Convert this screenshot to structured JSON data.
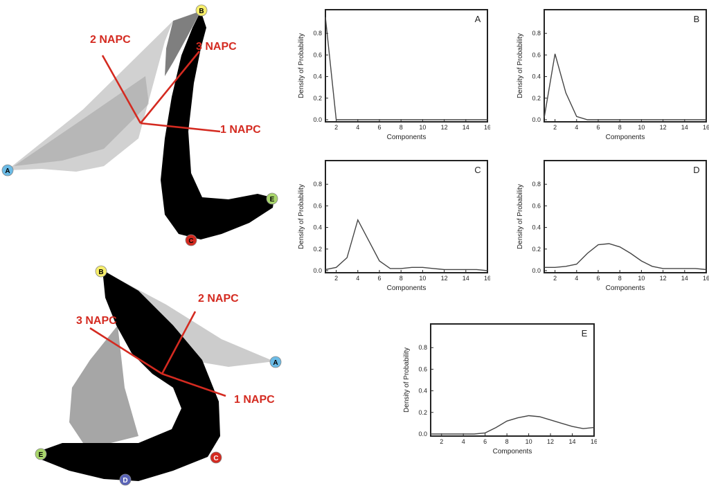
{
  "figure": {
    "scatter_top": {
      "napc_labels": [
        "2 NAPC",
        "3 NAPC",
        "1 NAPC"
      ],
      "vertices": [
        {
          "label": "B",
          "color": "#f7ee6b"
        },
        {
          "label": "A",
          "color": "#6bbbe6"
        },
        {
          "label": "E",
          "color": "#a8d56b"
        },
        {
          "label": "C",
          "color": "#d42a20"
        }
      ]
    },
    "scatter_bottom": {
      "napc_labels": [
        "2 NAPC",
        "3 NAPC",
        "1 NAPC"
      ],
      "vertices": [
        {
          "label": "B",
          "color": "#f7ee6b"
        },
        {
          "label": "A",
          "color": "#6bbbe6"
        },
        {
          "label": "E",
          "color": "#a8d56b"
        },
        {
          "label": "C",
          "color": "#d42a20"
        },
        {
          "label": "D",
          "color": "#5a64b8"
        }
      ]
    }
  },
  "chart_data": [
    {
      "type": "line",
      "panel_label": "A",
      "xlabel": "Components",
      "ylabel": "Density of Probability",
      "xlim": [
        1,
        16
      ],
      "ylim": [
        0,
        1
      ],
      "xticks": [
        2,
        4,
        6,
        8,
        10,
        12,
        14,
        16
      ],
      "yticks": [
        0.0,
        0.2,
        0.4,
        0.6,
        0.8
      ],
      "ytick_labels": [
        "0.0",
        "0.2",
        "0.4",
        "0.6",
        "0.8"
      ],
      "x": [
        1,
        2,
        3,
        4,
        5,
        6,
        7,
        8,
        9,
        10,
        11,
        12,
        13,
        14,
        15,
        16
      ],
      "y": [
        0.95,
        0.0,
        0.0,
        0.0,
        0.0,
        0.0,
        0.0,
        0.0,
        0.0,
        0.0,
        0.0,
        0.0,
        0.0,
        0.0,
        0.0,
        0.0
      ]
    },
    {
      "type": "line",
      "panel_label": "B",
      "xlabel": "Components",
      "ylabel": "Density of Probability",
      "xlim": [
        1,
        16
      ],
      "ylim": [
        0,
        1
      ],
      "xticks": [
        2,
        4,
        6,
        8,
        10,
        12,
        14,
        16
      ],
      "yticks": [
        0.0,
        0.2,
        0.4,
        0.6,
        0.8
      ],
      "ytick_labels": [
        "0.0",
        "0.2",
        "0.4",
        "0.6",
        "0.8"
      ],
      "x": [
        1,
        2,
        3,
        4,
        5,
        6,
        7,
        8,
        9,
        10,
        11,
        12,
        13,
        14,
        15,
        16
      ],
      "y": [
        0.02,
        0.61,
        0.25,
        0.03,
        0.0,
        0.0,
        0.0,
        0.0,
        0.0,
        0.0,
        0.0,
        0.0,
        0.0,
        0.0,
        0.0,
        0.0
      ]
    },
    {
      "type": "line",
      "panel_label": "C",
      "xlabel": "Components",
      "ylabel": "Density of Probability",
      "xlim": [
        1,
        16
      ],
      "ylim": [
        0,
        1
      ],
      "xticks": [
        2,
        4,
        6,
        8,
        10,
        12,
        14,
        16
      ],
      "yticks": [
        0.0,
        0.2,
        0.4,
        0.6,
        0.8
      ],
      "ytick_labels": [
        "0.0",
        "0.2",
        "0.4",
        "0.6",
        "0.8"
      ],
      "x": [
        1,
        2,
        3,
        4,
        5,
        6,
        7,
        8,
        9,
        10,
        11,
        12,
        13,
        14,
        15,
        16
      ],
      "y": [
        0.01,
        0.03,
        0.12,
        0.47,
        0.28,
        0.09,
        0.02,
        0.02,
        0.03,
        0.03,
        0.02,
        0.01,
        0.01,
        0.01,
        0.01,
        0.0
      ]
    },
    {
      "type": "line",
      "panel_label": "D",
      "xlabel": "Components",
      "ylabel": "Density of Probability",
      "xlim": [
        1,
        16
      ],
      "ylim": [
        0,
        1
      ],
      "xticks": [
        2,
        4,
        6,
        8,
        10,
        12,
        14,
        16
      ],
      "yticks": [
        0.0,
        0.2,
        0.4,
        0.6,
        0.8
      ],
      "ytick_labels": [
        "0.0",
        "0.2",
        "0.4",
        "0.6",
        "0.8"
      ],
      "x": [
        1,
        2,
        3,
        4,
        5,
        6,
        7,
        8,
        9,
        10,
        11,
        12,
        13,
        14,
        15,
        16
      ],
      "y": [
        0.03,
        0.03,
        0.04,
        0.06,
        0.16,
        0.24,
        0.25,
        0.22,
        0.16,
        0.09,
        0.04,
        0.02,
        0.02,
        0.02,
        0.02,
        0.01
      ]
    },
    {
      "type": "line",
      "panel_label": "E",
      "xlabel": "Components",
      "ylabel": "Density of Probability",
      "xlim": [
        1,
        16
      ],
      "ylim": [
        0,
        1
      ],
      "xticks": [
        2,
        4,
        6,
        8,
        10,
        12,
        14,
        16
      ],
      "yticks": [
        0.0,
        0.2,
        0.4,
        0.6,
        0.8
      ],
      "ytick_labels": [
        "0.0",
        "0.2",
        "0.4",
        "0.6",
        "0.8"
      ],
      "x": [
        1,
        2,
        3,
        4,
        5,
        6,
        7,
        8,
        9,
        10,
        11,
        12,
        13,
        14,
        15,
        16
      ],
      "y": [
        0.0,
        0.0,
        0.0,
        0.0,
        0.0,
        0.01,
        0.06,
        0.12,
        0.15,
        0.17,
        0.16,
        0.13,
        0.1,
        0.07,
        0.05,
        0.06
      ]
    }
  ]
}
